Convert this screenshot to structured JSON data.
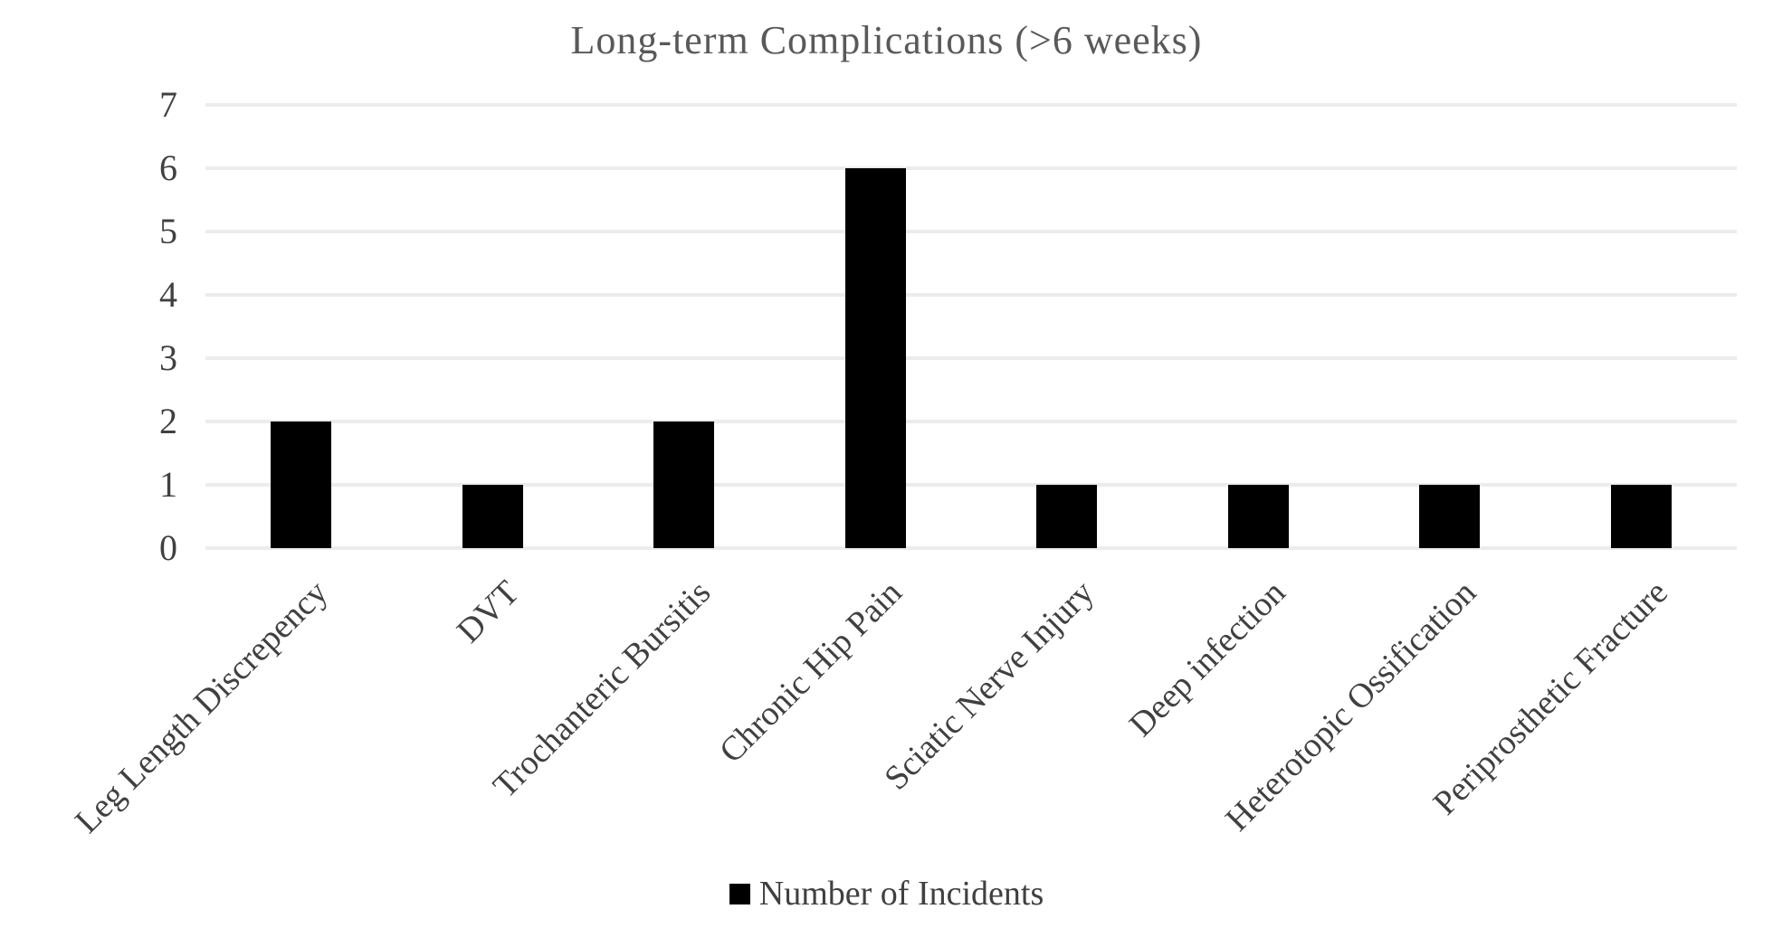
{
  "chart_data": {
    "type": "bar",
    "title": "Long-term Complications (>6 weeks)",
    "categories": [
      "Leg Length Discrepency",
      "DVT",
      "Trochanteric Bursitis",
      "Chronic Hip Pain",
      "Sciatic Nerve Injury",
      "Deep infection",
      "Heterotopic Ossification",
      "Periprosthetic Fracture"
    ],
    "series": [
      {
        "name": "Number of Incidents",
        "values": [
          2,
          1,
          2,
          6,
          1,
          1,
          1,
          1
        ]
      }
    ],
    "xlabel": "",
    "ylabel": "",
    "ylim": [
      0,
      7
    ],
    "yticks": [
      0,
      1,
      2,
      3,
      4,
      5,
      6,
      7
    ],
    "grid": true,
    "legend_position": "bottom",
    "x_label_rotation_deg": 45,
    "colors": {
      "bar": "#000000",
      "gridline": "#ececec",
      "title_text": "#595959",
      "axis_text": "#404040",
      "legend_text": "#404040"
    }
  }
}
